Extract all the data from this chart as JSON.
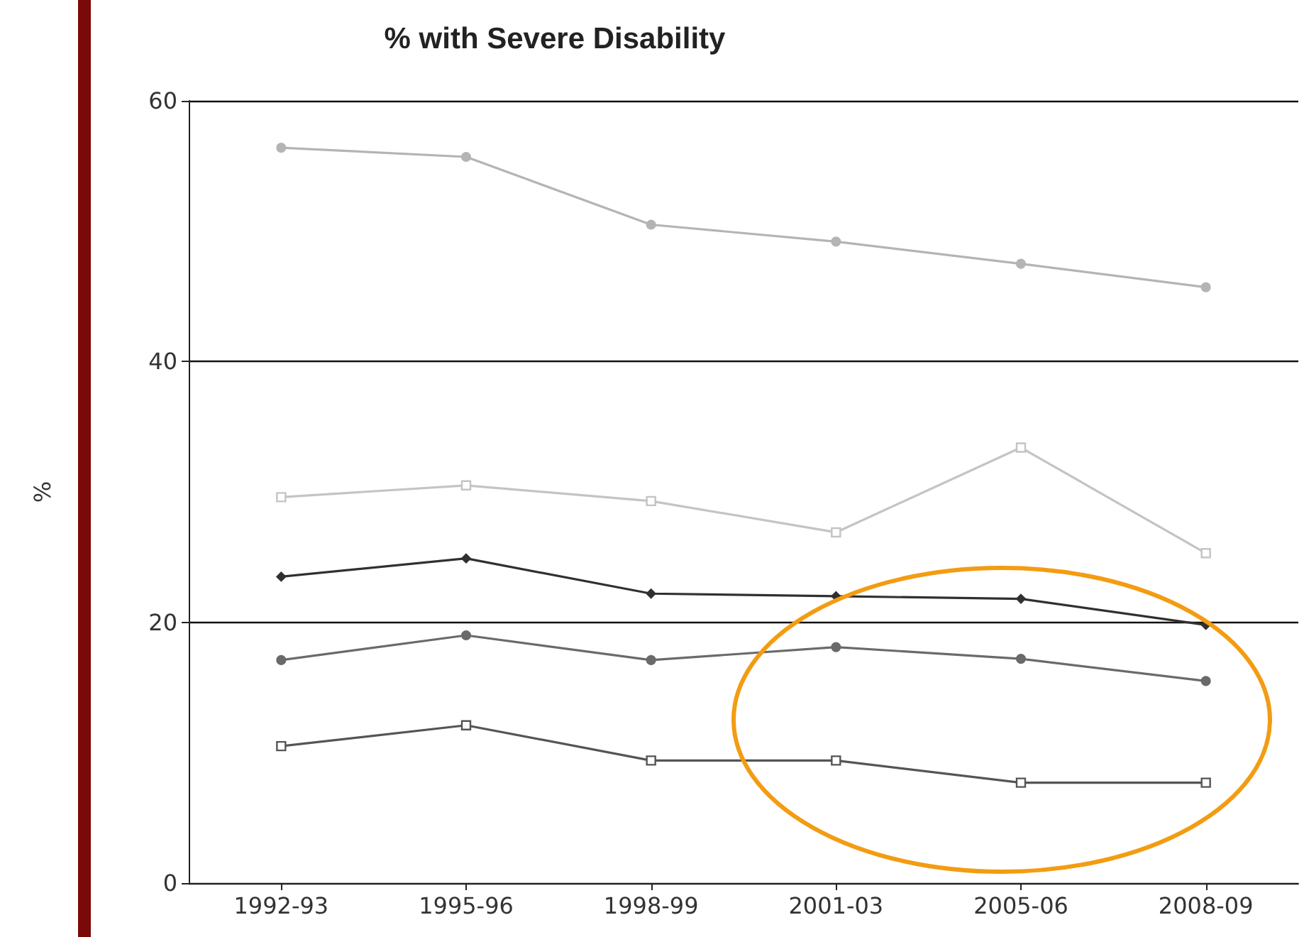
{
  "chart_data": {
    "type": "line",
    "title": "% with Severe Disability",
    "ylabel": "%",
    "categories": [
      "1992-93",
      "1995-96",
      "1998-99",
      "2001-03",
      "2005-06",
      "2008-09"
    ],
    "series": [
      {
        "color": "#b4b4b4",
        "marker": "circle",
        "values": [
          56.4,
          55.7,
          50.5,
          49.2,
          47.5,
          45.7
        ]
      },
      {
        "color": "#c4c4c4",
        "marker": "square",
        "values": [
          29.6,
          30.5,
          29.3,
          26.9,
          33.4,
          25.3
        ]
      },
      {
        "color": "#303030",
        "marker": "diamond",
        "values": [
          23.5,
          24.9,
          22.2,
          22.0,
          21.8,
          19.8
        ]
      },
      {
        "color": "#6a6a6a",
        "marker": "circle",
        "values": [
          17.1,
          19.0,
          17.1,
          18.1,
          17.2,
          15.5
        ]
      },
      {
        "color": "#555555",
        "marker": "square",
        "values": [
          10.5,
          12.1,
          9.4,
          9.4,
          7.7,
          7.7
        ]
      }
    ],
    "ylim": [
      0,
      60
    ],
    "yticks": [
      0,
      20,
      40,
      60
    ],
    "grid": "y",
    "line_style": "solid"
  }
}
